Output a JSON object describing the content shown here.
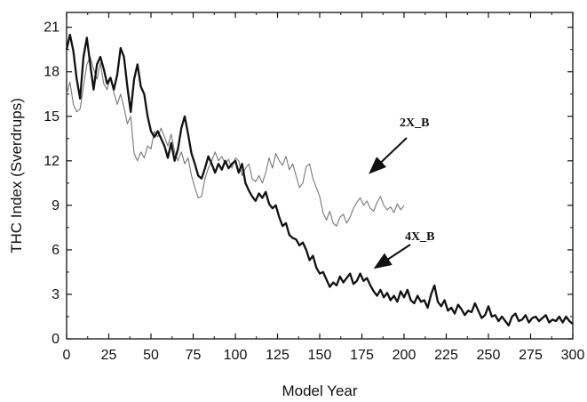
{
  "chart_data": {
    "type": "line",
    "xlabel": "Model Year",
    "ylabel": "THC Index (Sverdrups)",
    "xlim": [
      0,
      300
    ],
    "ylim": [
      0,
      22
    ],
    "x_ticks": [
      0,
      25,
      50,
      75,
      100,
      125,
      150,
      175,
      200,
      225,
      250,
      275,
      300
    ],
    "y_ticks": [
      0,
      3,
      6,
      9,
      12,
      15,
      18,
      21
    ],
    "grid": false,
    "series": [
      {
        "name": "2X_B",
        "color": "#777777",
        "x": [
          0,
          2,
          4,
          6,
          8,
          10,
          12,
          14,
          16,
          18,
          20,
          22,
          24,
          26,
          28,
          30,
          32,
          34,
          36,
          38,
          40,
          42,
          44,
          46,
          48,
          50,
          52,
          54,
          56,
          58,
          60,
          62,
          64,
          66,
          68,
          70,
          72,
          74,
          76,
          78,
          80,
          82,
          84,
          86,
          88,
          90,
          92,
          94,
          96,
          98,
          100,
          102,
          104,
          106,
          108,
          110,
          112,
          114,
          116,
          118,
          120,
          122,
          124,
          126,
          128,
          130,
          132,
          134,
          136,
          138,
          140,
          142,
          144,
          146,
          148,
          150,
          152,
          154,
          156,
          158,
          160,
          162,
          164,
          166,
          168,
          170,
          172,
          174,
          176,
          178,
          180,
          182,
          184,
          186,
          188,
          190,
          192,
          194,
          196,
          198,
          200
        ],
        "values": [
          16.5,
          17.3,
          15.8,
          15.3,
          15.5,
          17.0,
          18.5,
          19.0,
          18.2,
          17.5,
          18.6,
          17.2,
          16.8,
          17.6,
          16.6,
          15.8,
          16.5,
          15.6,
          14.5,
          15.0,
          12.5,
          12.0,
          12.6,
          12.2,
          13.0,
          12.8,
          14.0,
          13.6,
          14.2,
          13.6,
          13.0,
          13.8,
          12.6,
          12.0,
          12.6,
          11.8,
          12.2,
          11.0,
          10.2,
          9.5,
          9.6,
          10.8,
          11.5,
          12.0,
          12.6,
          12.0,
          12.3,
          11.8,
          12.1,
          11.5,
          12.2,
          12.0,
          11.0,
          11.5,
          11.8,
          10.8,
          10.6,
          11.0,
          10.5,
          11.2,
          12.2,
          11.5,
          12.5,
          12.0,
          11.7,
          12.3,
          11.4,
          11.8,
          11.0,
          10.2,
          10.5,
          11.6,
          11.8,
          10.8,
          10.2,
          9.6,
          8.5,
          8.0,
          8.6,
          7.8,
          7.6,
          8.2,
          8.4,
          7.8,
          8.2,
          8.8,
          9.2,
          9.5,
          9.0,
          9.3,
          8.8,
          8.6,
          9.2,
          9.6,
          9.0,
          8.7,
          8.9,
          8.5,
          9.1,
          8.7,
          9.0
        ]
      },
      {
        "name": "4X_B",
        "color": "#111111",
        "x": [
          0,
          2,
          4,
          6,
          8,
          10,
          12,
          14,
          16,
          18,
          20,
          22,
          24,
          26,
          28,
          30,
          32,
          34,
          36,
          38,
          40,
          42,
          44,
          46,
          48,
          50,
          52,
          54,
          56,
          58,
          60,
          62,
          64,
          66,
          68,
          70,
          72,
          74,
          76,
          78,
          80,
          82,
          84,
          86,
          88,
          90,
          92,
          94,
          96,
          98,
          100,
          102,
          104,
          106,
          108,
          110,
          112,
          114,
          116,
          118,
          120,
          122,
          124,
          126,
          128,
          130,
          132,
          134,
          136,
          138,
          140,
          142,
          144,
          146,
          148,
          150,
          152,
          154,
          156,
          158,
          160,
          162,
          164,
          166,
          168,
          170,
          172,
          174,
          176,
          178,
          180,
          182,
          184,
          186,
          188,
          190,
          192,
          194,
          196,
          198,
          200,
          202,
          204,
          206,
          208,
          210,
          212,
          214,
          216,
          218,
          220,
          222,
          224,
          226,
          228,
          230,
          232,
          234,
          236,
          238,
          240,
          242,
          244,
          246,
          248,
          250,
          252,
          254,
          256,
          258,
          260,
          262,
          264,
          266,
          268,
          270,
          272,
          274,
          276,
          278,
          280,
          282,
          284,
          286,
          288,
          290,
          292,
          294,
          296,
          298,
          300
        ],
        "values": [
          19.5,
          20.5,
          19.4,
          17.5,
          16.2,
          19.0,
          20.3,
          18.5,
          16.8,
          18.5,
          19.0,
          18.2,
          17.2,
          17.6,
          16.8,
          17.8,
          19.6,
          19.0,
          17.0,
          15.3,
          17.5,
          18.5,
          17.0,
          16.5,
          15.0,
          14.0,
          13.6,
          14.0,
          13.5,
          13.0,
          12.2,
          13.2,
          12.0,
          12.8,
          14.2,
          15.0,
          13.8,
          12.5,
          11.8,
          11.0,
          10.8,
          11.5,
          12.3,
          11.8,
          11.2,
          11.8,
          11.4,
          12.0,
          11.5,
          11.8,
          12.0,
          11.2,
          11.8,
          10.5,
          10.0,
          9.6,
          9.3,
          9.8,
          9.5,
          9.9,
          9.1,
          8.8,
          9.0,
          8.2,
          7.6,
          7.8,
          7.0,
          6.8,
          6.7,
          6.3,
          6.5,
          6.0,
          5.3,
          5.6,
          4.8,
          4.4,
          4.5,
          4.0,
          3.5,
          3.8,
          3.6,
          4.2,
          3.8,
          4.1,
          4.4,
          3.7,
          3.9,
          4.4,
          3.9,
          4.1,
          3.6,
          3.2,
          2.9,
          3.3,
          2.8,
          3.1,
          2.6,
          2.9,
          2.5,
          3.2,
          2.8,
          3.3,
          2.6,
          2.4,
          2.9,
          2.5,
          2.6,
          2.1,
          3.0,
          3.6,
          2.5,
          2.2,
          2.6,
          1.9,
          2.1,
          1.7,
          2.3,
          2.0,
          1.6,
          1.9,
          1.8,
          2.4,
          1.9,
          1.4,
          1.6,
          2.2,
          1.5,
          1.6,
          1.2,
          1.5,
          1.2,
          0.9,
          1.5,
          1.7,
          1.2,
          1.3,
          1.6,
          1.1,
          1.4,
          1.5,
          1.2,
          1.4,
          1.6,
          1.1,
          1.3,
          1.2,
          1.5,
          1.1,
          1.5,
          1.2,
          1.0
        ]
      }
    ],
    "annotations": [
      {
        "text": "2X_B",
        "series": "2X_B"
      },
      {
        "text": "4X_B",
        "series": "4X_B"
      }
    ]
  }
}
